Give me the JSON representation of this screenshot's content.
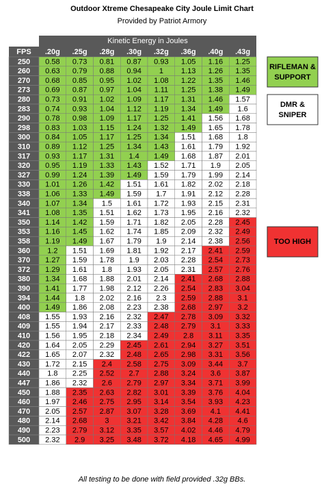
{
  "header": {
    "title": "Outdoor Xtreme Chesapeake City Joule Limit Chart",
    "subtitle": "Provided by Patriot Armory"
  },
  "table": {
    "group_header": "Kinetic Energy in Joules",
    "fps_header": "FPS",
    "columns": [
      ".20g",
      ".25g",
      ".28g",
      ".30g",
      ".32g",
      ".36g",
      ".40g",
      ".43g"
    ],
    "rows": [
      [
        250,
        0.58,
        0.73,
        0.81,
        0.87,
        0.93,
        1.05,
        1.16,
        1.25
      ],
      [
        260,
        0.63,
        0.79,
        0.88,
        0.94,
        1,
        1.13,
        1.26,
        1.35
      ],
      [
        270,
        0.68,
        0.85,
        0.95,
        1.02,
        1.08,
        1.22,
        1.35,
        1.46
      ],
      [
        273,
        0.69,
        0.87,
        0.97,
        1.04,
        1.11,
        1.25,
        1.38,
        1.49
      ],
      [
        280,
        0.73,
        0.91,
        1.02,
        1.09,
        1.17,
        1.31,
        1.46,
        1.57
      ],
      [
        283,
        0.74,
        0.93,
        1.04,
        1.12,
        1.19,
        1.34,
        1.49,
        1.6
      ],
      [
        290,
        0.78,
        0.98,
        1.09,
        1.17,
        1.25,
        1.41,
        1.56,
        1.68
      ],
      [
        298,
        0.83,
        1.03,
        1.15,
        1.24,
        1.32,
        1.49,
        1.65,
        1.78
      ],
      [
        300,
        0.84,
        1.05,
        1.17,
        1.25,
        1.34,
        1.51,
        1.68,
        1.8
      ],
      [
        310,
        0.89,
        1.12,
        1.25,
        1.34,
        1.43,
        1.61,
        1.79,
        1.92
      ],
      [
        317,
        0.93,
        1.17,
        1.31,
        1.4,
        1.49,
        1.68,
        1.87,
        2.01
      ],
      [
        320,
        0.95,
        1.19,
        1.33,
        1.43,
        1.52,
        1.71,
        1.9,
        2.05
      ],
      [
        327,
        0.99,
        1.24,
        1.39,
        1.49,
        1.59,
        1.79,
        1.99,
        2.14
      ],
      [
        330,
        1.01,
        1.26,
        1.42,
        1.51,
        1.61,
        1.82,
        2.02,
        2.18
      ],
      [
        338,
        1.06,
        1.33,
        1.49,
        1.59,
        1.7,
        1.91,
        2.12,
        2.28
      ],
      [
        340,
        1.07,
        1.34,
        1.5,
        1.61,
        1.72,
        1.93,
        2.15,
        2.31
      ],
      [
        341,
        1.08,
        1.35,
        1.51,
        1.62,
        1.73,
        1.95,
        2.16,
        2.32
      ],
      [
        350,
        1.14,
        1.42,
        1.59,
        1.71,
        1.82,
        2.05,
        2.28,
        2.45
      ],
      [
        353,
        1.16,
        1.45,
        1.62,
        1.74,
        1.85,
        2.09,
        2.32,
        2.49
      ],
      [
        358,
        1.19,
        1.49,
        1.67,
        1.79,
        1.9,
        2.14,
        2.38,
        2.56
      ],
      [
        360,
        1.2,
        1.51,
        1.69,
        1.81,
        1.92,
        2.17,
        2.41,
        2.59
      ],
      [
        370,
        1.27,
        1.59,
        1.78,
        1.9,
        2.03,
        2.28,
        2.54,
        2.73
      ],
      [
        372,
        1.29,
        1.61,
        1.8,
        1.93,
        2.05,
        2.31,
        2.57,
        2.76
      ],
      [
        380,
        1.34,
        1.68,
        1.88,
        2.01,
        2.14,
        2.41,
        2.68,
        2.88
      ],
      [
        390,
        1.41,
        1.77,
        1.98,
        2.12,
        2.26,
        2.54,
        2.83,
        3.04
      ],
      [
        394,
        1.44,
        1.8,
        2.02,
        2.16,
        2.3,
        2.59,
        2.88,
        3.1
      ],
      [
        400,
        1.49,
        1.86,
        2.08,
        2.23,
        2.38,
        2.68,
        2.97,
        3.2
      ],
      [
        408,
        1.55,
        1.93,
        2.16,
        2.32,
        2.47,
        2.78,
        3.09,
        3.32
      ],
      [
        409,
        1.55,
        1.94,
        2.17,
        2.33,
        2.48,
        2.79,
        3.1,
        3.33
      ],
      [
        410,
        1.56,
        1.95,
        2.18,
        2.34,
        2.49,
        2.8,
        3.11,
        3.35
      ],
      [
        420,
        1.64,
        2.05,
        2.29,
        2.45,
        2.61,
        2.94,
        3.27,
        3.51
      ],
      [
        422,
        1.65,
        2.07,
        2.32,
        2.48,
        2.65,
        2.98,
        3.31,
        3.56
      ],
      [
        430,
        1.72,
        2.15,
        2.4,
        2.58,
        2.75,
        3.09,
        3.44,
        3.7
      ],
      [
        440,
        1.8,
        2.25,
        2.52,
        2.7,
        2.88,
        3.24,
        3.6,
        3.87
      ],
      [
        447,
        1.86,
        2.32,
        2.6,
        2.79,
        2.97,
        3.34,
        3.71,
        3.99
      ],
      [
        450,
        1.88,
        2.35,
        2.63,
        2.82,
        3.01,
        3.39,
        3.76,
        4.04
      ],
      [
        460,
        1.97,
        2.46,
        2.75,
        2.95,
        3.14,
        3.54,
        3.93,
        4.23
      ],
      [
        470,
        2.05,
        2.57,
        2.87,
        3.07,
        3.28,
        3.69,
        4.1,
        4.41
      ],
      [
        480,
        2.14,
        2.68,
        3,
        3.21,
        3.42,
        3.84,
        4.28,
        4.6
      ],
      [
        490,
        2.23,
        2.79,
        3.12,
        3.35,
        3.57,
        4.02,
        4.46,
        4.79
      ],
      [
        500,
        2.32,
        2.9,
        3.25,
        3.48,
        3.72,
        4.18,
        4.65,
        4.99
      ]
    ]
  },
  "legend": [
    "RIFLEMAN & SUPPORT",
    "DMR & SNIPER",
    "TOO HIGH"
  ],
  "footer": "All testing to be done with field provided .32g BBs."
}
